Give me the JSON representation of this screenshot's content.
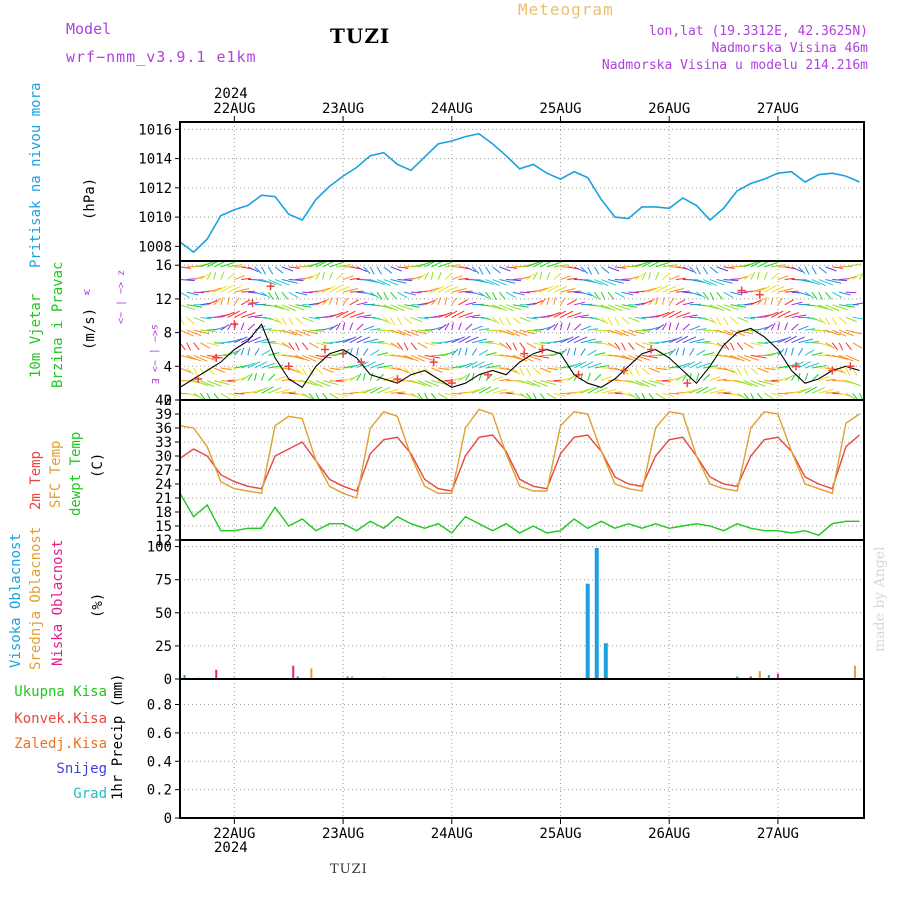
{
  "header": {
    "model_label": "Model",
    "model_name": "wrf−nmm_v3.9.1  e1km",
    "station": "TUZI",
    "title": "Meteogram",
    "lonlat": "lon,lat (19.3312E, 42.3625N)",
    "elevation": "Nadmorska Visina 46m",
    "model_elevation": "Nadmorska Visina u modelu 214.216m",
    "year_top": "2024",
    "year_bottom": "2024",
    "footer_station": "TUZI",
    "watermark": "made by Angel"
  },
  "colors": {
    "pressure": "#1ba1e2",
    "temp2m": "#e8473f",
    "sfc_temp": "#e0a030",
    "dewpoint": "#1ec81e",
    "wind_speed": "#000000",
    "gust": "#e8473f",
    "high_cloud": "#1ba1e2",
    "mid_cloud": "#e0a030",
    "low_cloud": "#e0208a",
    "total_precip": "#1ec81e",
    "conv_precip": "#e8473f",
    "frz_precip": "#f07020",
    "snow": "#4040e0",
    "grad": "#20c0c0",
    "purple": "#b040e0",
    "gold": "#e8c070"
  },
  "panel_labels": {
    "pressure": {
      "name": "Pritisak na nivou mora",
      "unit": "(hPa)"
    },
    "wind": {
      "name1": "10m Vjetar",
      "name2": "Brzina i Pravac",
      "unit": "(m/s)",
      "compass_w": "w",
      "compass_top": "<− | −> z",
      "compass_bottom": "s<− | −> E"
    },
    "temp": {
      "l1": "2m Temp",
      "l2": "SFC Temp",
      "l3": "dewpt Temp",
      "unit": "(C)"
    },
    "cloud": {
      "l1": "Visoka Oblacnost",
      "l2": "Srednja Oblacnost",
      "l3": "Niska Oblacnost",
      "unit": "(%)"
    },
    "precip": {
      "l1": "Ukupna Kisa",
      "l2": "Konvek.Kisa",
      "l3": "Zaledj.Kisa",
      "l4": "Snijeg",
      "l5": "Grad",
      "axis": "1hr Precip (mm)"
    }
  },
  "chart_data": [
    {
      "type": "line",
      "panel": "pressure",
      "x_unit": "hours since 22AUG 00",
      "ylim": [
        1007,
        1016.5
      ],
      "yticks": [
        "1008",
        "1010",
        "1012",
        "1014",
        "1016"
      ],
      "categories": [
        "22AUG",
        "23AUG",
        "24AUG",
        "25AUG",
        "26AUG",
        "27AUG"
      ],
      "series": [
        {
          "x": [
            -12,
            -9,
            -6,
            -3,
            0,
            3,
            6,
            9,
            12,
            15,
            18,
            21,
            24,
            27,
            30,
            33,
            36,
            39,
            42,
            45,
            48,
            51,
            54,
            57,
            60,
            63,
            66,
            69,
            72,
            75,
            78,
            81,
            84,
            87,
            90,
            93,
            96,
            99,
            102,
            105,
            108,
            111,
            114,
            117,
            120,
            123,
            126,
            129,
            132,
            135,
            138
          ],
          "values": [
            1008.3,
            1007.6,
            1008.5,
            1010.1,
            1010.5,
            1010.8,
            1011.5,
            1011.4,
            1010.2,
            1009.8,
            1011.2,
            1012.1,
            1012.8,
            1013.4,
            1014.2,
            1014.4,
            1013.6,
            1013.2,
            1014.1,
            1015.0,
            1015.2,
            1015.5,
            1015.7,
            1015.0,
            1014.2,
            1013.3,
            1013.6,
            1013.0,
            1012.6,
            1013.1,
            1012.7,
            1011.2,
            1010.0,
            1009.9,
            1010.7,
            1010.7,
            1010.6,
            1011.3,
            1010.8,
            1009.8,
            1010.6,
            1011.8,
            1012.3,
            1012.6,
            1013.0,
            1013.1,
            1012.4,
            1012.9,
            1013.0,
            1012.8,
            1012.4
          ]
        }
      ]
    },
    {
      "type": "line",
      "panel": "wind",
      "ylim": [
        0,
        16.5
      ],
      "yticks": [
        "0",
        "4",
        "8",
        "12",
        "16"
      ],
      "series": [
        {
          "name": "speed",
          "x": [
            -12,
            -9,
            -6,
            -3,
            0,
            3,
            6,
            9,
            12,
            15,
            18,
            21,
            24,
            27,
            30,
            33,
            36,
            39,
            42,
            45,
            48,
            51,
            54,
            57,
            60,
            63,
            66,
            69,
            72,
            75,
            78,
            81,
            84,
            87,
            90,
            93,
            96,
            99,
            102,
            105,
            108,
            111,
            114,
            117,
            120,
            123,
            126,
            129,
            132,
            135,
            138
          ],
          "values": [
            1.5,
            2.5,
            3.5,
            4.5,
            6.0,
            7.0,
            9.0,
            5.0,
            2.5,
            1.5,
            4.0,
            5.5,
            6.0,
            5.0,
            3.0,
            2.5,
            2.0,
            3.0,
            3.5,
            2.5,
            1.5,
            2.0,
            3.0,
            3.5,
            3.0,
            4.5,
            5.5,
            6.0,
            5.5,
            3.0,
            2.0,
            1.5,
            2.5,
            4.0,
            5.5,
            6.0,
            5.0,
            3.5,
            2.0,
            4.0,
            6.5,
            8.0,
            8.5,
            7.5,
            6.0,
            3.5,
            2.0,
            2.5,
            3.5,
            4.0,
            3.5
          ]
        },
        {
          "name": "gust",
          "x": [
            -8,
            -4,
            0,
            4,
            8,
            12,
            20,
            24,
            28,
            36,
            44,
            48,
            56,
            64,
            68,
            76,
            86,
            92,
            100,
            112,
            116,
            124,
            132,
            136
          ],
          "values": [
            2.5,
            5.0,
            9.0,
            11.5,
            13.5,
            4.0,
            6.0,
            5.5,
            4.5,
            2.5,
            4.5,
            2.0,
            3.0,
            5.5,
            6.0,
            3.0,
            3.5,
            6.0,
            2.0,
            13.0,
            12.5,
            4.0,
            3.5,
            4.0
          ]
        }
      ]
    },
    {
      "type": "line",
      "panel": "temperature",
      "ylim": [
        12,
        42
      ],
      "yticks": [
        "12",
        "15",
        "18",
        "21",
        "24",
        "27",
        "30",
        "33",
        "36",
        "39",
        "42"
      ],
      "series": [
        {
          "name": "2m",
          "x": [
            -12,
            -9,
            -6,
            -3,
            0,
            3,
            6,
            9,
            12,
            15,
            18,
            21,
            24,
            27,
            30,
            33,
            36,
            39,
            42,
            45,
            48,
            51,
            54,
            57,
            60,
            63,
            66,
            69,
            72,
            75,
            78,
            81,
            84,
            87,
            90,
            93,
            96,
            99,
            102,
            105,
            108,
            111,
            114,
            117,
            120,
            123,
            126,
            129,
            132,
            135,
            138
          ],
          "values": [
            29.5,
            31.5,
            30.0,
            26.0,
            24.5,
            23.5,
            23.0,
            30.0,
            31.5,
            33.0,
            29.0,
            25.0,
            23.5,
            22.5,
            30.5,
            33.5,
            34.0,
            30.5,
            25.0,
            23.0,
            22.5,
            30.0,
            34.0,
            34.5,
            31.0,
            25.0,
            23.5,
            23.0,
            30.5,
            34.0,
            34.5,
            31.0,
            25.5,
            24.0,
            23.5,
            30.0,
            33.5,
            34.0,
            30.0,
            25.5,
            24.0,
            23.5,
            30.0,
            33.5,
            34.0,
            31.0,
            25.5,
            24.0,
            23.0,
            32.0,
            34.5
          ]
        },
        {
          "name": "sfc",
          "x": [
            -12,
            -9,
            -6,
            -3,
            0,
            3,
            6,
            9,
            12,
            15,
            18,
            21,
            24,
            27,
            30,
            33,
            36,
            39,
            42,
            45,
            48,
            51,
            54,
            57,
            60,
            63,
            66,
            69,
            72,
            75,
            78,
            81,
            84,
            87,
            90,
            93,
            96,
            99,
            102,
            105,
            108,
            111,
            114,
            117,
            120,
            123,
            126,
            129,
            132,
            135,
            138
          ],
          "values": [
            36.5,
            36.0,
            32.0,
            24.5,
            23.0,
            22.5,
            22.0,
            36.5,
            38.5,
            38.0,
            29.0,
            23.5,
            22.0,
            21.0,
            36.0,
            39.5,
            38.5,
            30.0,
            23.5,
            22.0,
            22.0,
            36.0,
            40.0,
            39.0,
            30.5,
            23.5,
            22.5,
            22.5,
            36.5,
            39.5,
            39.0,
            31.0,
            24.0,
            23.0,
            22.5,
            36.0,
            39.5,
            39.0,
            30.0,
            24.0,
            23.0,
            22.5,
            36.0,
            39.5,
            39.0,
            31.0,
            24.0,
            23.0,
            22.0,
            37.0,
            39.0
          ]
        },
        {
          "name": "dewpt",
          "x": [
            -12,
            -9,
            -6,
            -3,
            0,
            3,
            6,
            9,
            12,
            15,
            18,
            21,
            24,
            27,
            30,
            33,
            36,
            39,
            42,
            45,
            48,
            51,
            54,
            57,
            60,
            63,
            66,
            69,
            72,
            75,
            78,
            81,
            84,
            87,
            90,
            93,
            96,
            99,
            102,
            105,
            108,
            111,
            114,
            117,
            120,
            123,
            126,
            129,
            132,
            135,
            138
          ],
          "values": [
            22.0,
            17.0,
            19.5,
            14.0,
            14.0,
            14.5,
            14.5,
            19.0,
            15.0,
            16.5,
            14.0,
            15.5,
            15.5,
            14.0,
            16.0,
            14.5,
            17.0,
            15.5,
            14.5,
            15.5,
            13.5,
            17.0,
            15.5,
            14.0,
            15.5,
            13.5,
            15.0,
            13.5,
            14.0,
            16.5,
            14.5,
            16.0,
            14.5,
            15.5,
            14.5,
            15.5,
            14.5,
            15.0,
            15.5,
            15.0,
            14.0,
            15.5,
            14.5,
            14.0,
            14.0,
            13.5,
            14.0,
            13.0,
            15.5,
            16.0,
            16.0
          ]
        }
      ]
    },
    {
      "type": "bar",
      "panel": "cloud",
      "ylim": [
        0,
        105
      ],
      "yticks": [
        "0",
        "25",
        "50",
        "75",
        "100"
      ],
      "series": [
        {
          "name": "high",
          "x": [
            -11,
            0,
            14,
            25,
            78,
            80,
            82,
            111,
            118
          ],
          "values": [
            3,
            1,
            2,
            2,
            72,
            99,
            27,
            2,
            3
          ]
        },
        {
          "name": "mid",
          "x": [
            -8,
            17,
            26,
            116,
            137
          ],
          "values": [
            1,
            8,
            2,
            6,
            10
          ]
        },
        {
          "name": "low",
          "x": [
            -4,
            13,
            33,
            114,
            120
          ],
          "values": [
            7,
            10,
            1,
            2,
            4
          ]
        }
      ]
    },
    {
      "type": "bar",
      "panel": "precipitation",
      "ylim": [
        0,
        0.98
      ],
      "yticks": [
        "0",
        "0.2",
        "0.4",
        "0.6",
        "0.8"
      ],
      "series": []
    }
  ]
}
